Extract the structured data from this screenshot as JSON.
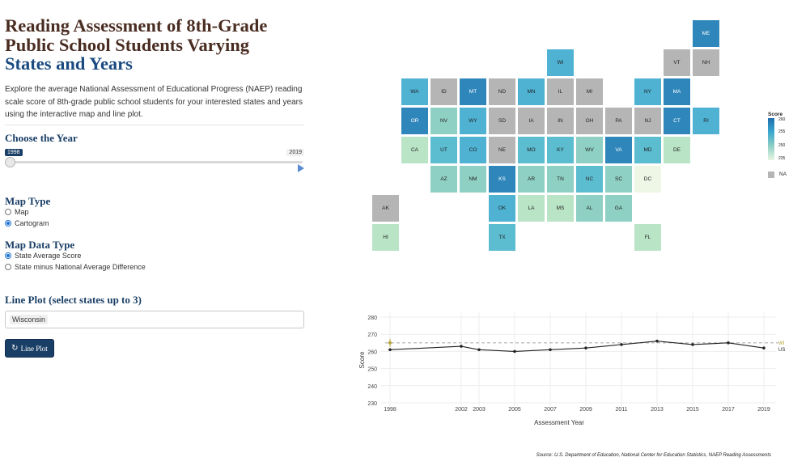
{
  "title_line1": "Reading Assessment of 8th-Grade",
  "title_line2": "Public School Students Varying",
  "title_line3": "States and Years",
  "intro": "Explore the average National Assessment of Educational Progress (NAEP) reading scale score of 8th-grade public school students for your interested states and years using the interactive map and line plot.",
  "year_heading": "Choose the Year",
  "year_min_label": "1998",
  "year_max_label": "2019",
  "year_selected": 1998,
  "map_type_heading": "Map Type",
  "map_type_options": [
    {
      "label": "Map",
      "checked": false
    },
    {
      "label": "Cartogram",
      "checked": true
    }
  ],
  "map_data_heading": "Map Data Type",
  "map_data_options": [
    {
      "label": "State Average Score",
      "checked": true
    },
    {
      "label": "State minus National Average Difference",
      "checked": false
    }
  ],
  "lineplot_heading": "Line Plot (select states up to 3)",
  "lineplot_selected": "Wisconsin",
  "lineplot_button": "Line Plot",
  "icons": {
    "button_icon": "refresh-icon"
  },
  "colors": {
    "title_dark": "#4a2d22",
    "title_blue": "#1a4a80",
    "accent": "#1a3f66",
    "na": "#b5b5b5"
  },
  "map": {
    "legend_title": "Score",
    "legend_ticks": [
      "260",
      "255",
      "250",
      "235"
    ],
    "na_label": "NA",
    "tiles": [
      {
        "abbr": "ME",
        "col": 11,
        "row": 0,
        "color": "#2e86ba"
      },
      {
        "abbr": "WI",
        "col": 6,
        "row": 1,
        "color": "#4fb2d3"
      },
      {
        "abbr": "VT",
        "col": 10,
        "row": 1,
        "color": "#b5b5b5"
      },
      {
        "abbr": "NH",
        "col": 11,
        "row": 1,
        "color": "#b5b5b5"
      },
      {
        "abbr": "WA",
        "col": 1,
        "row": 2,
        "color": "#4fb2d3"
      },
      {
        "abbr": "ID",
        "col": 2,
        "row": 2,
        "color": "#b5b5b5"
      },
      {
        "abbr": "MT",
        "col": 3,
        "row": 2,
        "color": "#2e86ba"
      },
      {
        "abbr": "ND",
        "col": 4,
        "row": 2,
        "color": "#b5b5b5"
      },
      {
        "abbr": "MN",
        "col": 5,
        "row": 2,
        "color": "#4fb2d3"
      },
      {
        "abbr": "IL",
        "col": 6,
        "row": 2,
        "color": "#b5b5b5"
      },
      {
        "abbr": "MI",
        "col": 7,
        "row": 2,
        "color": "#b5b5b5"
      },
      {
        "abbr": "NY",
        "col": 9,
        "row": 2,
        "color": "#4fb2d3"
      },
      {
        "abbr": "MA",
        "col": 10,
        "row": 2,
        "color": "#2e86ba"
      },
      {
        "abbr": "OR",
        "col": 1,
        "row": 3,
        "color": "#2e86ba"
      },
      {
        "abbr": "NV",
        "col": 2,
        "row": 3,
        "color": "#8fd0c4"
      },
      {
        "abbr": "WY",
        "col": 3,
        "row": 3,
        "color": "#4fb2d3"
      },
      {
        "abbr": "SD",
        "col": 4,
        "row": 3,
        "color": "#b5b5b5"
      },
      {
        "abbr": "IA",
        "col": 5,
        "row": 3,
        "color": "#b5b5b5"
      },
      {
        "abbr": "IN",
        "col": 6,
        "row": 3,
        "color": "#b5b5b5"
      },
      {
        "abbr": "OH",
        "col": 7,
        "row": 3,
        "color": "#b5b5b5"
      },
      {
        "abbr": "PA",
        "col": 8,
        "row": 3,
        "color": "#b5b5b5"
      },
      {
        "abbr": "NJ",
        "col": 9,
        "row": 3,
        "color": "#b5b5b5"
      },
      {
        "abbr": "CT",
        "col": 10,
        "row": 3,
        "color": "#2e86ba"
      },
      {
        "abbr": "RI",
        "col": 11,
        "row": 3,
        "color": "#4fb2d3"
      },
      {
        "abbr": "CA",
        "col": 1,
        "row": 4,
        "color": "#b9e4c6"
      },
      {
        "abbr": "UT",
        "col": 2,
        "row": 4,
        "color": "#5cbcd0"
      },
      {
        "abbr": "CO",
        "col": 3,
        "row": 4,
        "color": "#4fb2d3"
      },
      {
        "abbr": "NE",
        "col": 4,
        "row": 4,
        "color": "#b5b5b5"
      },
      {
        "abbr": "MO",
        "col": 5,
        "row": 4,
        "color": "#5cbcd0"
      },
      {
        "abbr": "KY",
        "col": 6,
        "row": 4,
        "color": "#5cbcd0"
      },
      {
        "abbr": "WV",
        "col": 7,
        "row": 4,
        "color": "#8fd0c4"
      },
      {
        "abbr": "VA",
        "col": 8,
        "row": 4,
        "color": "#2e86ba"
      },
      {
        "abbr": "MD",
        "col": 9,
        "row": 4,
        "color": "#5cbcd0"
      },
      {
        "abbr": "DE",
        "col": 10,
        "row": 4,
        "color": "#b9e4c6"
      },
      {
        "abbr": "AZ",
        "col": 2,
        "row": 5,
        "color": "#8fd0c4"
      },
      {
        "abbr": "NM",
        "col": 3,
        "row": 5,
        "color": "#8fd0c4"
      },
      {
        "abbr": "KS",
        "col": 4,
        "row": 5,
        "color": "#2e86ba"
      },
      {
        "abbr": "AR",
        "col": 5,
        "row": 5,
        "color": "#8fd0c4"
      },
      {
        "abbr": "TN",
        "col": 6,
        "row": 5,
        "color": "#8fd0c4"
      },
      {
        "abbr": "NC",
        "col": 7,
        "row": 5,
        "color": "#5cbcd0"
      },
      {
        "abbr": "SC",
        "col": 8,
        "row": 5,
        "color": "#8fd0c4"
      },
      {
        "abbr": "DC",
        "col": 9,
        "row": 5,
        "color": "#eef7e6"
      },
      {
        "abbr": "AK",
        "col": 0,
        "row": 6,
        "color": "#b5b5b5"
      },
      {
        "abbr": "OK",
        "col": 4,
        "row": 6,
        "color": "#4fb2d3"
      },
      {
        "abbr": "LA",
        "col": 5,
        "row": 6,
        "color": "#b9e4c6"
      },
      {
        "abbr": "MS",
        "col": 6,
        "row": 6,
        "color": "#b9e4c6"
      },
      {
        "abbr": "AL",
        "col": 7,
        "row": 6,
        "color": "#8fd0c4"
      },
      {
        "abbr": "GA",
        "col": 8,
        "row": 6,
        "color": "#8fd0c4"
      },
      {
        "abbr": "HI",
        "col": 0,
        "row": 7,
        "color": "#b9e4c6"
      },
      {
        "abbr": "TX",
        "col": 4,
        "row": 7,
        "color": "#5cbcd0"
      },
      {
        "abbr": "FL",
        "col": 9,
        "row": 7,
        "color": "#b9e4c6"
      }
    ]
  },
  "chart_data": {
    "type": "line",
    "xlabel": "Assessment Year",
    "ylabel": "Score",
    "x_ticks": [
      1998,
      2002,
      2003,
      2005,
      2007,
      2009,
      2011,
      2013,
      2015,
      2017,
      2019
    ],
    "y_ticks": [
      230,
      240,
      250,
      260,
      270,
      280
    ],
    "xlim": [
      1998,
      2019
    ],
    "ylim": [
      230,
      280
    ],
    "grid": true,
    "series": [
      {
        "name": "WI",
        "style": "dashed",
        "color": "#b0b0b0",
        "x": [
          1998,
          2019
        ],
        "y": [
          265,
          265
        ]
      },
      {
        "name": "US",
        "style": "solid",
        "color": "#222222",
        "x": [
          1998,
          2002,
          2003,
          2005,
          2007,
          2009,
          2011,
          2013,
          2015,
          2017,
          2019
        ],
        "y": [
          261,
          263,
          261,
          260,
          261,
          262,
          264,
          266,
          264,
          265,
          262
        ]
      }
    ],
    "highlight": {
      "x": 1998,
      "y": 265,
      "color": "#b8a43a"
    }
  },
  "source": "Source: U.S. Department of Education, National Center for Education Statistics, NAEP Reading Assessments"
}
